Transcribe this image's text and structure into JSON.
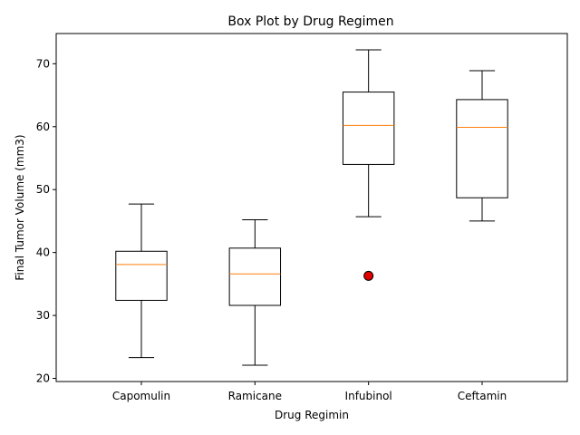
{
  "chart_data": {
    "type": "box",
    "title": "Box Plot by Drug Regimen",
    "xlabel": "Drug Regimin",
    "ylabel": "Final Tumor Volume (mm3)",
    "ylim": [
      19.5,
      74.8
    ],
    "yticks": [
      20,
      30,
      40,
      50,
      60,
      70
    ],
    "grid": false,
    "categories": [
      "Capomulin",
      "Ramicane",
      "Infubinol",
      "Ceftamin"
    ],
    "boxes": [
      {
        "category": "Capomulin",
        "whisker_low": 23.3,
        "q1": 32.4,
        "median": 38.1,
        "q3": 40.2,
        "whisker_high": 47.7,
        "outliers": []
      },
      {
        "category": "Ramicane",
        "whisker_low": 22.1,
        "q1": 31.6,
        "median": 36.6,
        "q3": 40.7,
        "whisker_high": 45.2,
        "outliers": []
      },
      {
        "category": "Infubinol",
        "whisker_low": 45.7,
        "q1": 54.0,
        "median": 60.2,
        "q3": 65.5,
        "whisker_high": 72.2,
        "outliers": [
          36.3
        ]
      },
      {
        "category": "Ceftamin",
        "whisker_low": 45.0,
        "q1": 48.7,
        "median": 59.9,
        "q3": 64.3,
        "whisker_high": 68.9,
        "outliers": []
      }
    ],
    "colors": {
      "box": "#000000",
      "median": "#ff7f0e",
      "outlier_fill": "#e00000",
      "outlier_edge": "#000000"
    }
  }
}
